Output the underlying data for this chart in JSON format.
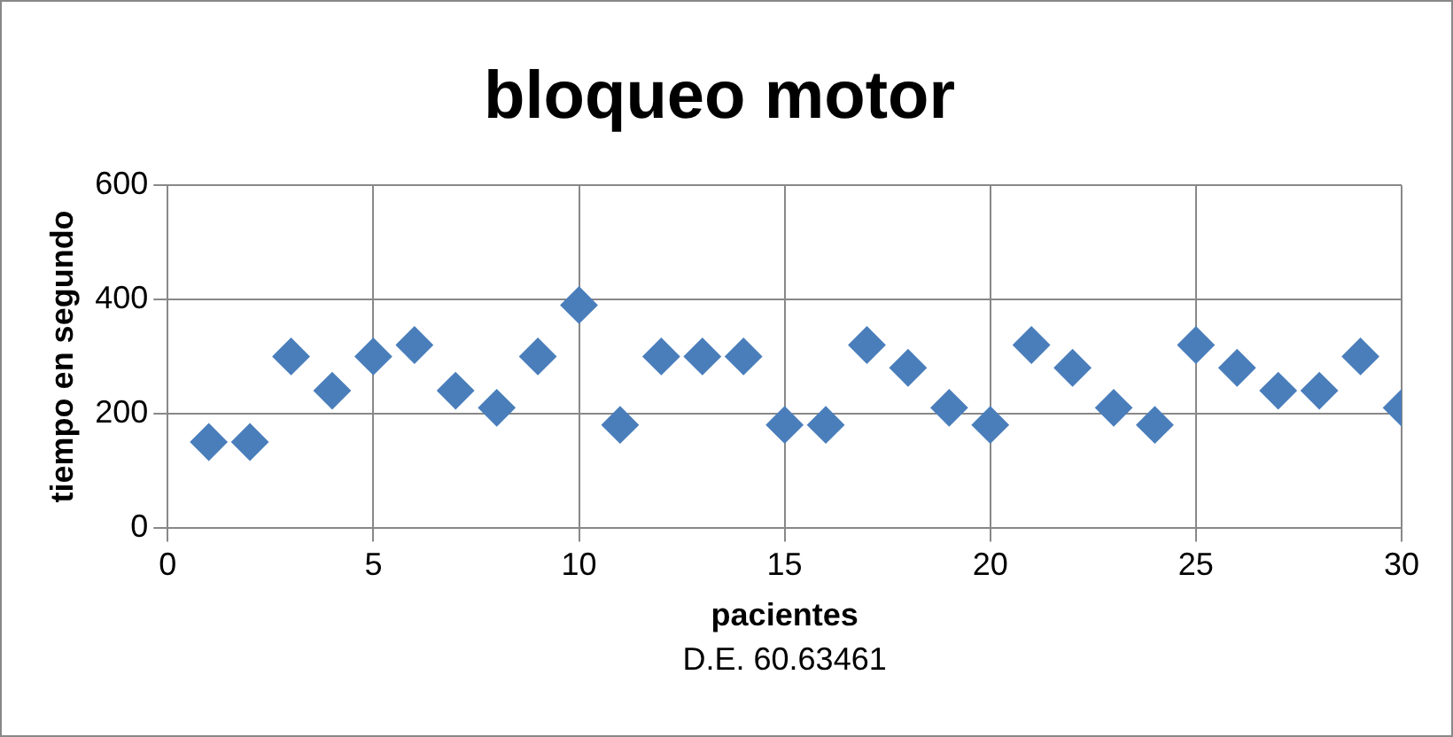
{
  "chart_data": {
    "type": "scatter",
    "title": "bloqueo motor",
    "xlabel": "pacientes",
    "ylabel": "tiempo en segundo",
    "annotations": [
      "D.E. 60.63461"
    ],
    "x": [
      1,
      2,
      3,
      4,
      5,
      6,
      7,
      8,
      9,
      10,
      11,
      12,
      13,
      14,
      15,
      16,
      17,
      18,
      19,
      20,
      21,
      22,
      23,
      24,
      25,
      26,
      27,
      28,
      29,
      30
    ],
    "series": [
      {
        "color": "#4a7ebb",
        "values": [
          150,
          150,
          300,
          240,
          300,
          320,
          240,
          210,
          300,
          390,
          180,
          300,
          300,
          300,
          180,
          180,
          320,
          280,
          210,
          180,
          320,
          280,
          210,
          180,
          320,
          280,
          240,
          240,
          300,
          210
        ]
      }
    ],
    "xlim": [
      0,
      30
    ],
    "xticks": [
      0,
      5,
      10,
      15,
      20,
      25,
      30
    ],
    "ylim": [
      0,
      600
    ],
    "yticks": [
      0,
      200,
      400,
      600
    ],
    "grid": true,
    "legend": false,
    "marker": "diamond"
  }
}
